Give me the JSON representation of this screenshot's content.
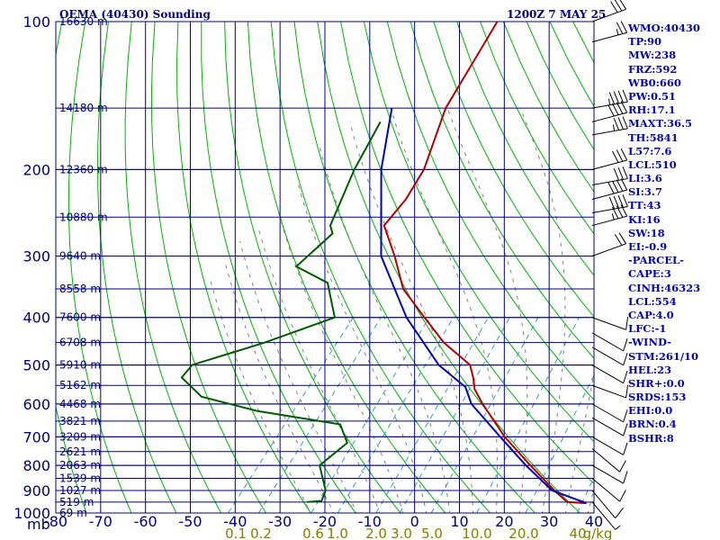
{
  "header": {
    "title": "OEMA (40430) Sounding",
    "datetime": "1200Z  7 MAY 25"
  },
  "sidebar": [
    "WMO:40430",
    "TP:90",
    "MW:238",
    "FRZ:592",
    "WB0:660",
    "PW:0.51",
    "RH:17.1",
    "MAXT:36.5",
    "TH:5841",
    "L57:7.6",
    "LCL:510",
    "LI:3.6",
    "SI:3.7",
    "TT:43",
    "KI:16",
    "SW:18",
    "EI:-0.9",
    "-PARCEL-",
    "CAPE:3",
    "CINH:46323",
    "LCL:554",
    "CAP:4.0",
    "LFC:-1",
    "-WIND-",
    "STM:261/10",
    "HEL:23",
    "SHR+:0.0",
    "SRDS:153",
    "EHI:0.0",
    "BRN:0.4",
    "BSHR:8"
  ],
  "colors": {
    "frame": "#000080",
    "dry_adiabats": "#00b400",
    "moist_adiabats": "#808080",
    "mixing_ratio": "#3399cc",
    "temperature": "#b40000",
    "parcel": "#0000b4",
    "dewpoint": "#005a00",
    "mixing_labels": "#808000",
    "wind_barbs": "#000000"
  },
  "chart_data": {
    "type": "line",
    "subtype": "skew-T log-p sounding",
    "title": "OEMA (40430) Sounding",
    "xlabel": "",
    "ylabel": "mb",
    "x_ticks": [
      -80,
      -70,
      -60,
      -50,
      -40,
      -30,
      -20,
      -10,
      0,
      10,
      20,
      30,
      40
    ],
    "y_ticks": [
      100,
      200,
      300,
      400,
      500,
      600,
      700,
      800,
      900,
      1000
    ],
    "height_labels": [
      {
        "p": 100,
        "text": "16630 m"
      },
      {
        "p": 150,
        "text": "14180 m"
      },
      {
        "p": 200,
        "text": "12360 m"
      },
      {
        "p": 250,
        "text": "10880 m"
      },
      {
        "p": 300,
        "text": "9640 m"
      },
      {
        "p": 350,
        "text": "8558 m"
      },
      {
        "p": 400,
        "text": "7600 m"
      },
      {
        "p": 450,
        "text": "6708 m"
      },
      {
        "p": 500,
        "text": "5910 m"
      },
      {
        "p": 550,
        "text": "5162 m"
      },
      {
        "p": 600,
        "text": "4468 m"
      },
      {
        "p": 650,
        "text": "3821 m"
      },
      {
        "p": 700,
        "text": "3209 m"
      },
      {
        "p": 750,
        "text": "2621 m"
      },
      {
        "p": 800,
        "text": "2063 m"
      },
      {
        "p": 850,
        "text": "1539 m"
      },
      {
        "p": 900,
        "text": "1027 m"
      },
      {
        "p": 950,
        "text": "519 m"
      },
      {
        "p": 1000,
        "text": "69 m"
      }
    ],
    "mixing_ratio_labels": [
      "0.1",
      "0.2",
      "0.6",
      "1.0",
      "2.0",
      "3.0",
      "5.0",
      "10.0",
      "20.0",
      "40",
      "g/kg"
    ],
    "mixing_ratio_values": [
      0.1,
      0.2,
      0.6,
      1.0,
      2.0,
      3.0,
      5.0,
      10.0,
      20.0,
      40
    ],
    "series": [
      {
        "key": "temperature",
        "points": [
          [
            100,
            -72.5
          ],
          [
            150,
            -68
          ],
          [
            200,
            -61.5
          ],
          [
            230,
            -60
          ],
          [
            260,
            -60
          ],
          [
            300,
            -52
          ],
          [
            350,
            -44
          ],
          [
            400,
            -34
          ],
          [
            450,
            -25
          ],
          [
            500,
            -15
          ],
          [
            530,
            -12
          ],
          [
            560,
            -9.5
          ],
          [
            600,
            -5
          ],
          [
            700,
            6
          ],
          [
            800,
            17
          ],
          [
            900,
            27
          ],
          [
            950,
            32
          ],
          [
            955,
            36.5
          ]
        ]
      },
      {
        "key": "parcel",
        "points": [
          [
            150,
            -80
          ],
          [
            200,
            -71
          ],
          [
            300,
            -55
          ],
          [
            400,
            -38
          ],
          [
            500,
            -22
          ],
          [
            554,
            -12
          ],
          [
            600,
            -7.5
          ],
          [
            700,
            5
          ],
          [
            800,
            16
          ],
          [
            900,
            26.5
          ],
          [
            955,
            36.5
          ]
        ]
      },
      {
        "key": "dewpoint",
        "points": [
          [
            160,
            -80
          ],
          [
            200,
            -77
          ],
          [
            260,
            -72
          ],
          [
            270,
            -70
          ],
          [
            315,
            -72
          ],
          [
            340,
            -62
          ],
          [
            400,
            -54
          ],
          [
            450,
            -65
          ],
          [
            500,
            -77
          ],
          [
            530,
            -77
          ],
          [
            580,
            -69
          ],
          [
            620,
            -54
          ],
          [
            660,
            -33
          ],
          [
            720,
            -28
          ],
          [
            800,
            -30
          ],
          [
            900,
            -24
          ],
          [
            945,
            -23
          ],
          [
            950,
            -26
          ]
        ]
      }
    ],
    "wind_barbs": [
      {
        "p": 100,
        "dir": 250,
        "spd": 30
      },
      {
        "p": 110,
        "dir": 255,
        "spd": 25
      },
      {
        "p": 150,
        "dir": 260,
        "spd": 45
      },
      {
        "p": 160,
        "dir": 255,
        "spd": 40
      },
      {
        "p": 170,
        "dir": 260,
        "spd": 35
      },
      {
        "p": 200,
        "dir": 255,
        "spd": 30
      },
      {
        "p": 215,
        "dir": 260,
        "spd": 30
      },
      {
        "p": 230,
        "dir": 255,
        "spd": 40
      },
      {
        "p": 245,
        "dir": 260,
        "spd": 40
      },
      {
        "p": 260,
        "dir": 255,
        "spd": 35
      },
      {
        "p": 300,
        "dir": 250,
        "spd": 20
      },
      {
        "p": 400,
        "dir": 290,
        "spd": 10
      },
      {
        "p": 430,
        "dir": 300,
        "spd": 10
      },
      {
        "p": 460,
        "dir": 300,
        "spd": 10
      },
      {
        "p": 500,
        "dir": 300,
        "spd": 10
      },
      {
        "p": 550,
        "dir": 290,
        "spd": 10
      },
      {
        "p": 600,
        "dir": 300,
        "spd": 10
      },
      {
        "p": 640,
        "dir": 300,
        "spd": 10
      },
      {
        "p": 700,
        "dir": 300,
        "spd": 10
      },
      {
        "p": 740,
        "dir": 310,
        "spd": 10
      },
      {
        "p": 800,
        "dir": 300,
        "spd": 10
      },
      {
        "p": 850,
        "dir": 310,
        "spd": 10
      },
      {
        "p": 900,
        "dir": 320,
        "spd": 10
      },
      {
        "p": 950,
        "dir": 320,
        "spd": 5
      }
    ],
    "xlim": [
      -80,
      40
    ],
    "ylim": [
      1000,
      100
    ],
    "log_y": true,
    "grid": true
  }
}
